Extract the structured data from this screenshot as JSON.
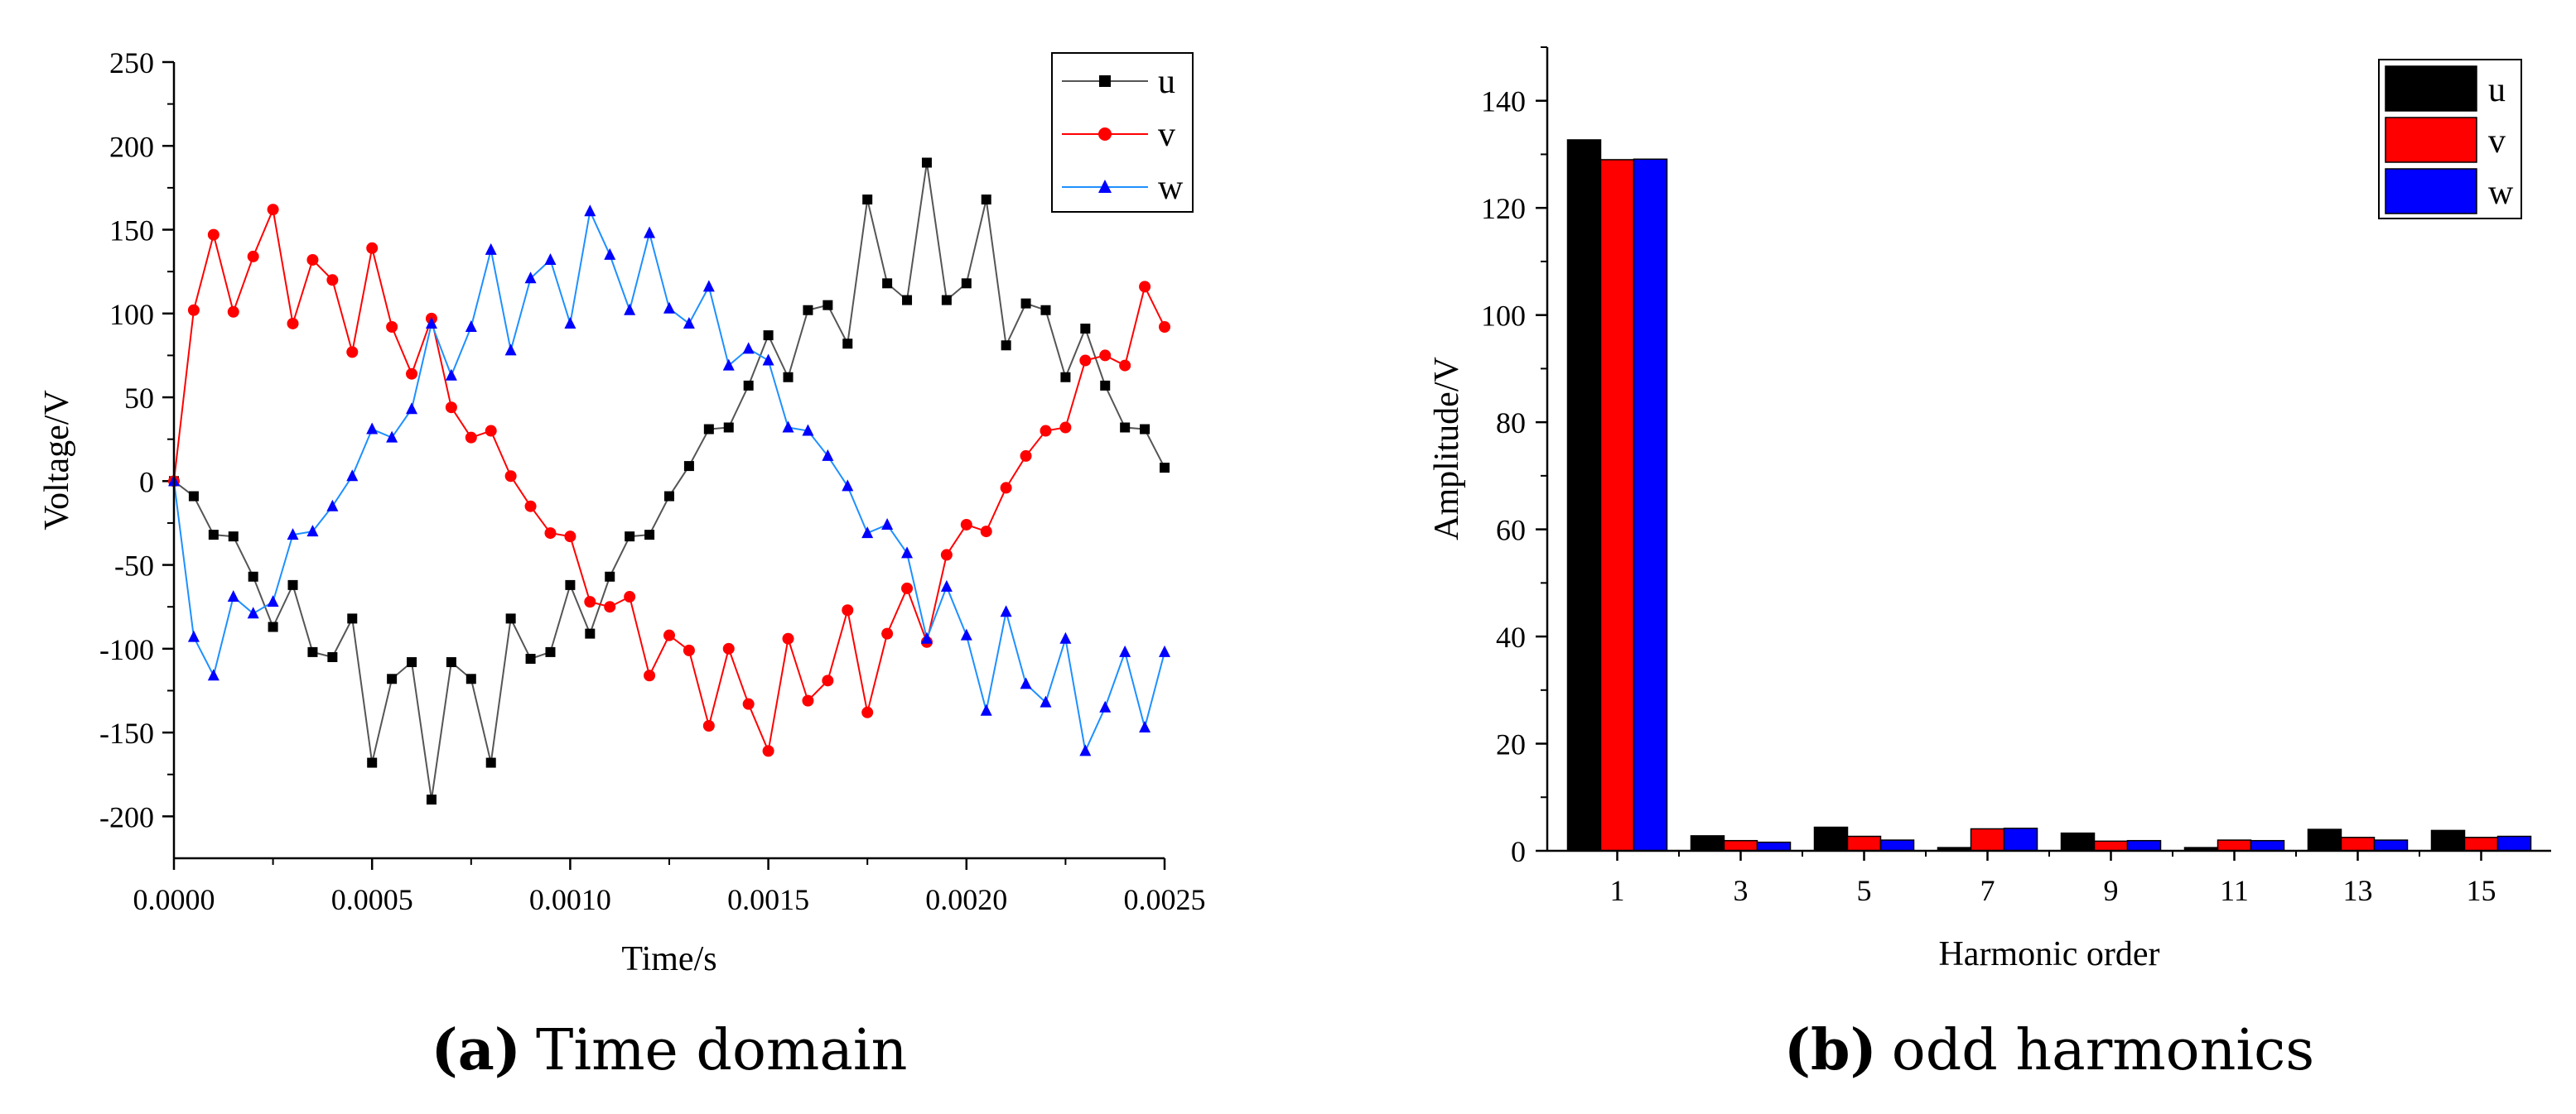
{
  "chart_data": [
    {
      "type": "line",
      "xlabel": "Time/s",
      "ylabel": "Voltage/V",
      "xlim": [
        0,
        0.0025
      ],
      "ylim": [
        -225,
        250
      ],
      "xticks": [
        "0.0000",
        "0.0005",
        "0.0010",
        "0.0015",
        "0.0020",
        "0.0025"
      ],
      "xtick_values": [
        0,
        0.0005,
        0.001,
        0.0015,
        0.002,
        0.0025
      ],
      "yticks": [
        "250",
        "200",
        "150",
        "100",
        "50",
        "0",
        "-50",
        "-100",
        "-150",
        "-200"
      ],
      "ytick_values": [
        250,
        200,
        150,
        100,
        50,
        0,
        -50,
        -100,
        -150,
        -200
      ],
      "x_step": 5e-05,
      "legend_position": "top-right",
      "series": [
        {
          "name": "u",
          "color": "#000000",
          "line_color": "#555555",
          "marker": "square",
          "values": [
            0,
            -9,
            -32,
            -33,
            -57,
            -87,
            -62,
            -102,
            -105,
            -82,
            -168,
            -118,
            -108,
            -190,
            -108,
            -118,
            -168,
            -82,
            -106,
            -102,
            -62,
            -91,
            -57,
            -33,
            -32,
            -9,
            9,
            31,
            32,
            57,
            87,
            62,
            102,
            105,
            82,
            168,
            118,
            108,
            190,
            108,
            118,
            168,
            81,
            106,
            102,
            62,
            91,
            57,
            32,
            31,
            8
          ]
        },
        {
          "name": "v",
          "color": "#ff0000",
          "line_color": "#ff0000",
          "marker": "circle",
          "values": [
            0,
            102,
            147,
            101,
            134,
            162,
            94,
            132,
            120,
            77,
            139,
            92,
            64,
            97,
            44,
            26,
            30,
            3,
            -15,
            -31,
            -33,
            -72,
            -75,
            -69,
            -116,
            -92,
            -101,
            -146,
            -100,
            -133,
            -161,
            -94,
            -131,
            -119,
            -77,
            -138,
            -91,
            -64,
            -96,
            -44,
            -26,
            -30,
            -4,
            15,
            30,
            32,
            72,
            75,
            69,
            116,
            92
          ]
        },
        {
          "name": "w",
          "color": "#0000ff",
          "line_color": "#1e90ff",
          "marker": "triangle",
          "values": [
            0,
            -93,
            -116,
            -69,
            -79,
            -72,
            -32,
            -30,
            -15,
            3,
            31,
            26,
            43,
            94,
            63,
            92,
            138,
            78,
            121,
            132,
            94,
            161,
            135,
            102,
            148,
            103,
            94,
            116,
            69,
            79,
            72,
            32,
            30,
            15,
            -3,
            -31,
            -26,
            -43,
            -94,
            -63,
            -92,
            -137,
            -78,
            -121,
            -132,
            -94,
            -161,
            -135,
            -102,
            -147,
            -102
          ]
        }
      ]
    },
    {
      "type": "bar",
      "xlabel": "Harmonic order",
      "ylabel": "Amplitude/V",
      "ylim": [
        0,
        150
      ],
      "categories": [
        "1",
        "3",
        "5",
        "7",
        "9",
        "11",
        "13",
        "15"
      ],
      "yticks": [
        "0",
        "20",
        "40",
        "60",
        "80",
        "100",
        "120",
        "140"
      ],
      "ytick_values": [
        0,
        20,
        40,
        60,
        80,
        100,
        120,
        140
      ],
      "legend_position": "top-right",
      "series": [
        {
          "name": "u",
          "color": "#000000",
          "values": [
            132.7,
            2.8,
            4.4,
            0.6,
            3.3,
            0.6,
            4.0,
            3.8
          ]
        },
        {
          "name": "v",
          "color": "#ff0000",
          "values": [
            129.0,
            1.9,
            2.7,
            4.1,
            1.8,
            2.0,
            2.5,
            2.5
          ]
        },
        {
          "name": "w",
          "color": "#0000ff",
          "values": [
            129.1,
            1.6,
            2.0,
            4.2,
            1.9,
            1.9,
            2.0,
            2.7
          ]
        }
      ]
    }
  ],
  "captions": {
    "a": {
      "label": "(a)",
      "text": "Time domain"
    },
    "b": {
      "label": "(b)",
      "text": "odd harmonics"
    }
  }
}
